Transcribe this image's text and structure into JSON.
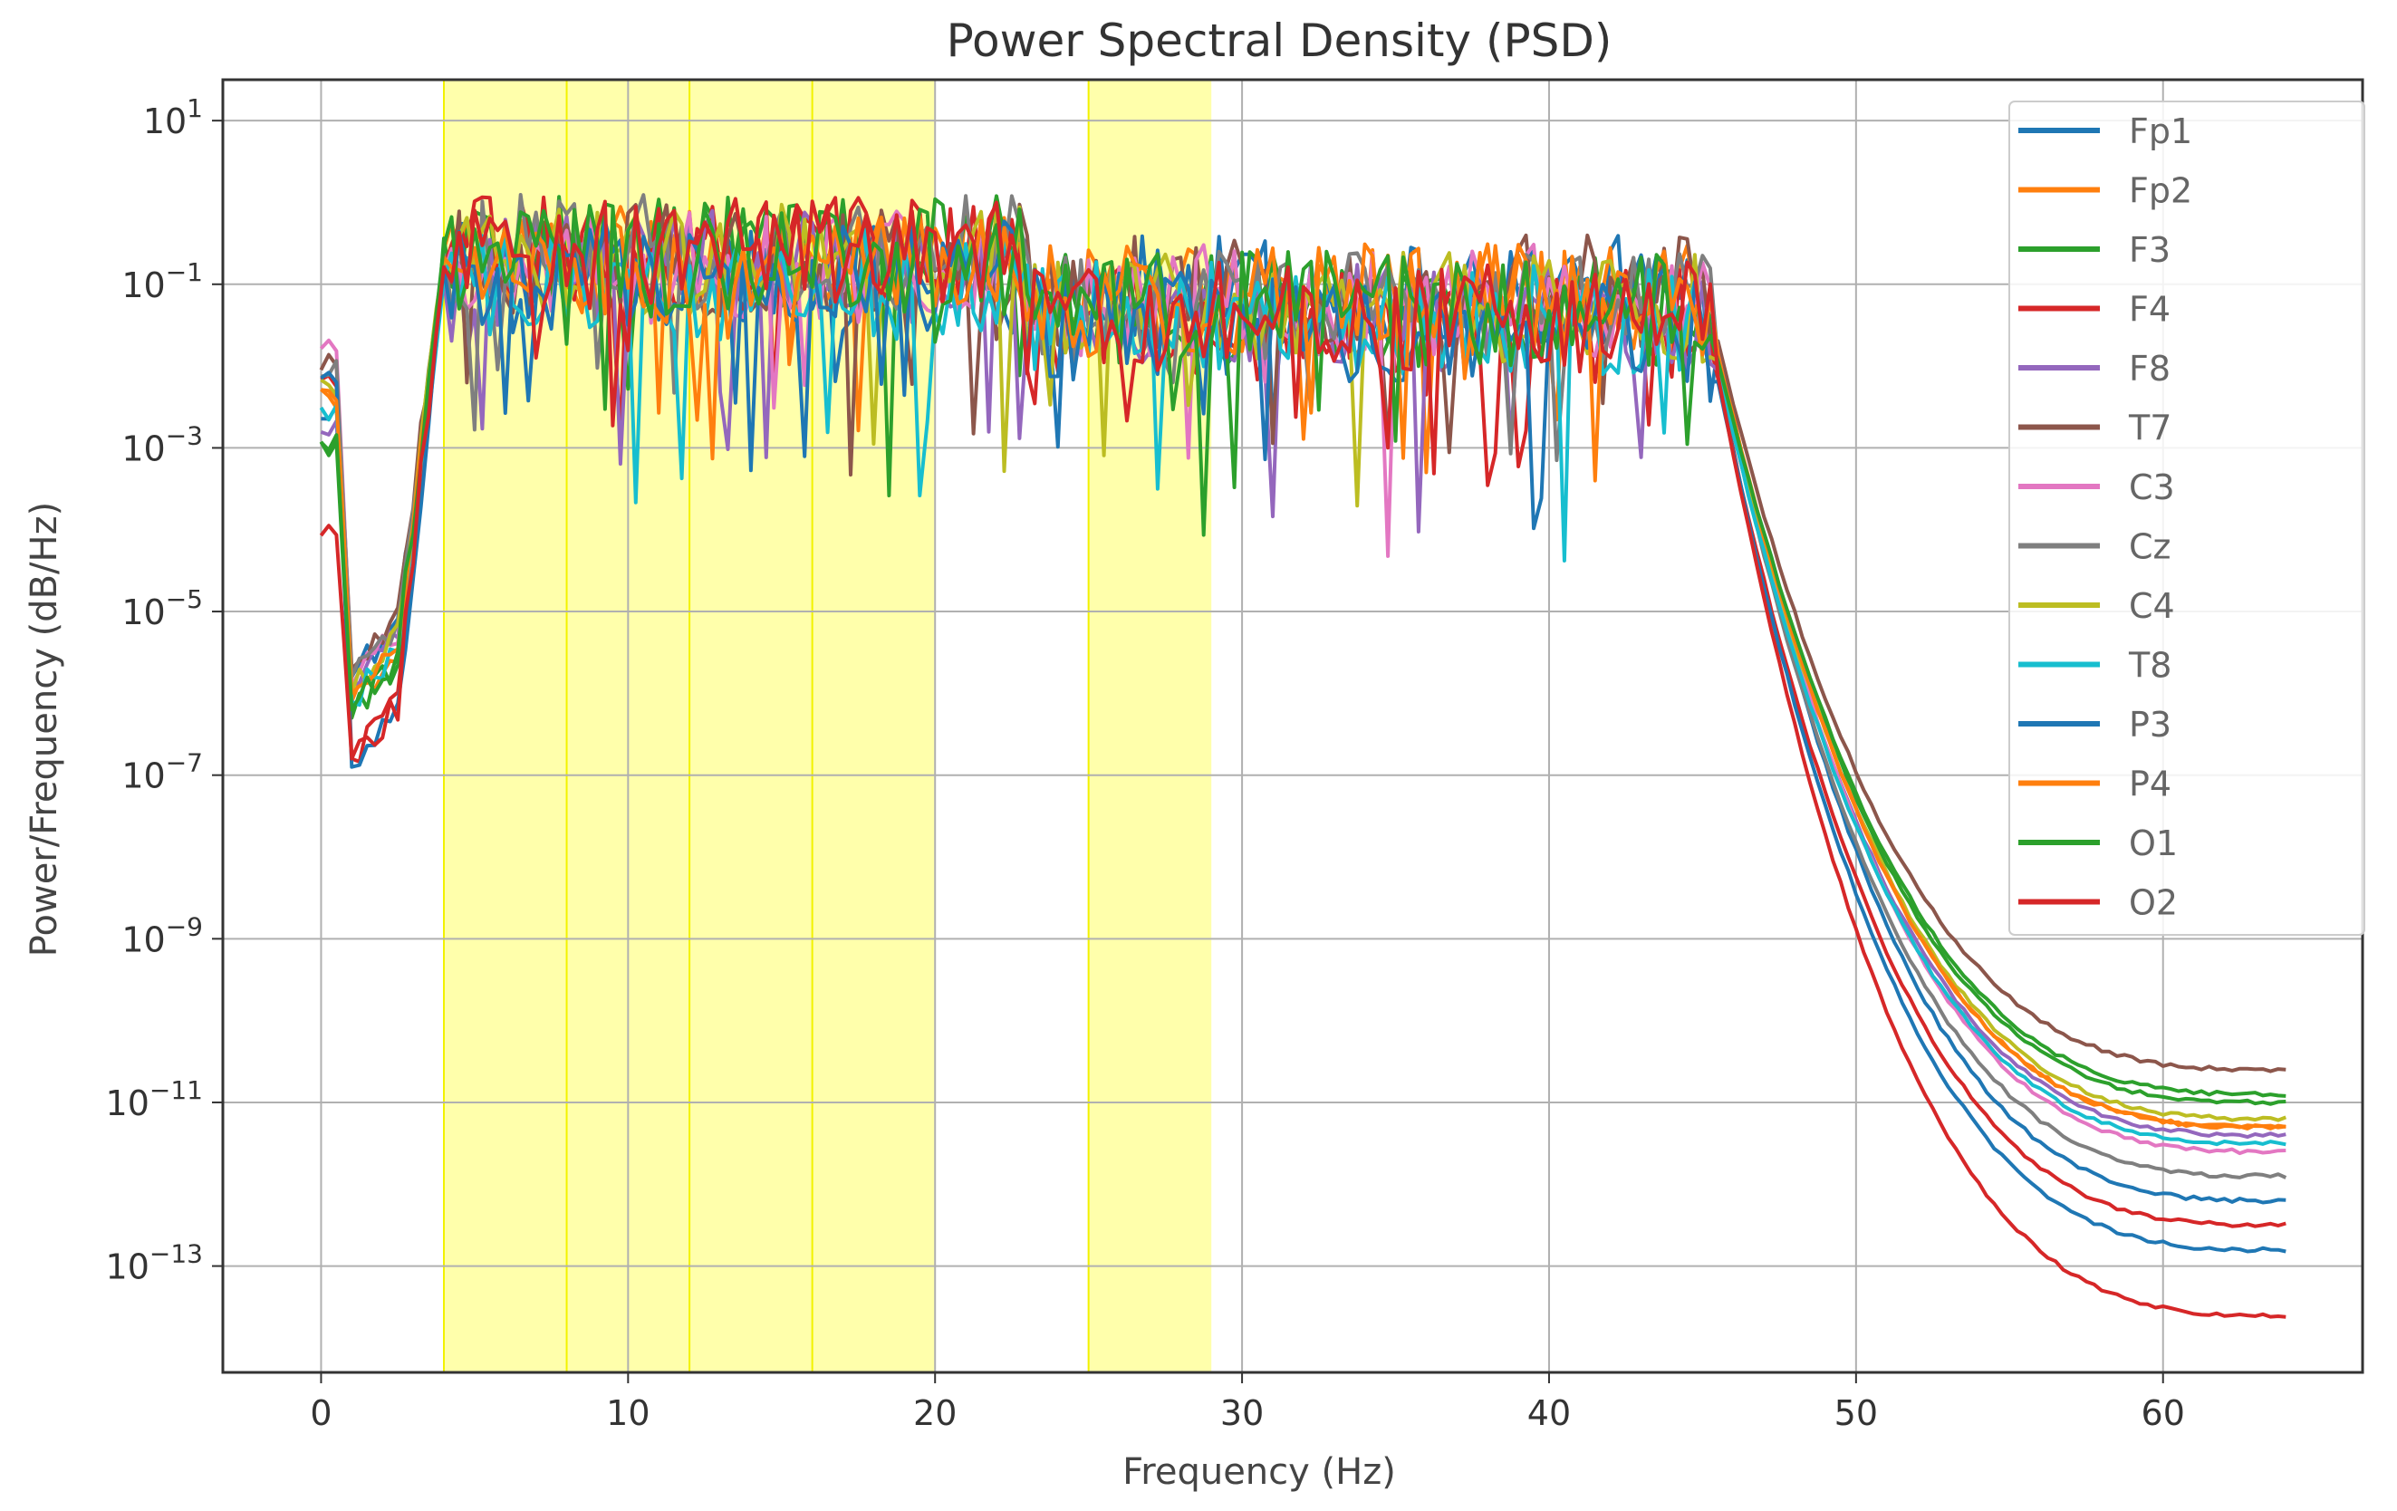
{
  "chart_data": {
    "type": "line",
    "title": "Power Spectral Density (PSD)",
    "xlabel": "Frequency (Hz)",
    "ylabel": "Power/Frequency (dB/Hz)",
    "y_scale": "log",
    "xlim": [
      -3.2,
      66.5
    ],
    "ylim_exp": [
      -14.3,
      1.5
    ],
    "x_ticks": [
      {
        "value": 0,
        "label": "0"
      },
      {
        "value": 10,
        "label": "10"
      },
      {
        "value": 20,
        "label": "20"
      },
      {
        "value": 30,
        "label": "30"
      },
      {
        "value": 40,
        "label": "40"
      },
      {
        "value": 50,
        "label": "50"
      },
      {
        "value": 60,
        "label": "60"
      }
    ],
    "y_ticks": [
      {
        "exp": 1,
        "base": "10",
        "sup": "1"
      },
      {
        "exp": -1,
        "base": "10",
        "sup": "−1"
      },
      {
        "exp": -3,
        "base": "10",
        "sup": "−3"
      },
      {
        "exp": -5,
        "base": "10",
        "sup": "−5"
      },
      {
        "exp": -7,
        "base": "10",
        "sup": "−7"
      },
      {
        "exp": -9,
        "base": "10",
        "sup": "−9"
      },
      {
        "exp": -11,
        "base": "10",
        "sup": "−11"
      },
      {
        "exp": -13,
        "base": "10",
        "sup": "−13"
      }
    ],
    "grid": true,
    "legend_position": "top-right",
    "highlight_bands": [
      {
        "start": 4,
        "end": 8
      },
      {
        "start": 8,
        "end": 12
      },
      {
        "start": 12,
        "end": 16
      },
      {
        "start": 16,
        "end": 20
      },
      {
        "start": 25,
        "end": 29
      }
    ],
    "highlight_color": "#ffff66",
    "series": [
      {
        "name": "Fp1",
        "color": "#1f77b4",
        "lowcut_exp": -2.5,
        "dip_exp": -5.8,
        "band_exp": -0.9,
        "lower_band_exp": -1.1,
        "tail_exp": -12.2
      },
      {
        "name": "Fp2",
        "color": "#ff7f0e",
        "lowcut_exp": -2.4,
        "dip_exp": -6.1,
        "band_exp": -0.7,
        "lower_band_exp": -1.2,
        "tail_exp": -11.3
      },
      {
        "name": "F3",
        "color": "#2ca02c",
        "lowcut_exp": -3.0,
        "dip_exp": -6.3,
        "band_exp": -0.6,
        "lower_band_exp": -1.3,
        "tail_exp": -11.0
      },
      {
        "name": "F4",
        "color": "#d62728",
        "lowcut_exp": -2.2,
        "dip_exp": -6.8,
        "band_exp": -0.6,
        "lower_band_exp": -1.5,
        "tail_exp": -12.5
      },
      {
        "name": "F8",
        "color": "#9467bd",
        "lowcut_exp": -2.8,
        "dip_exp": -5.9,
        "band_exp": -0.8,
        "lower_band_exp": -1.4,
        "tail_exp": -11.4
      },
      {
        "name": "T7",
        "color": "#8c564b",
        "lowcut_exp": -2.0,
        "dip_exp": -5.7,
        "band_exp": -0.7,
        "lower_band_exp": -1.1,
        "tail_exp": -10.6
      },
      {
        "name": "C3",
        "color": "#e377c2",
        "lowcut_exp": -1.7,
        "dip_exp": -5.9,
        "band_exp": -0.8,
        "lower_band_exp": -1.2,
        "tail_exp": -11.6
      },
      {
        "name": "Cz",
        "color": "#7f7f7f",
        "lowcut_exp": -2.0,
        "dip_exp": -5.8,
        "band_exp": -0.6,
        "lower_band_exp": -1.3,
        "tail_exp": -11.9
      },
      {
        "name": "C4",
        "color": "#bcbd22",
        "lowcut_exp": -2.3,
        "dip_exp": -6.0,
        "band_exp": -0.7,
        "lower_band_exp": -1.3,
        "tail_exp": -11.2
      },
      {
        "name": "T8",
        "color": "#17becf",
        "lowcut_exp": -2.6,
        "dip_exp": -6.1,
        "band_exp": -1.0,
        "lower_band_exp": -1.4,
        "tail_exp": -11.5
      },
      {
        "name": "P3",
        "color": "#1f77b4",
        "lowcut_exp": -2.2,
        "dip_exp": -6.9,
        "band_exp": -0.9,
        "lower_band_exp": -1.5,
        "tail_exp": -12.8
      },
      {
        "name": "P4",
        "color": "#ff7f0e",
        "lowcut_exp": -2.3,
        "dip_exp": -6.0,
        "band_exp": -0.8,
        "lower_band_exp": -1.2,
        "tail_exp": -11.3
      },
      {
        "name": "O1",
        "color": "#2ca02c",
        "lowcut_exp": -2.9,
        "dip_exp": -6.2,
        "band_exp": -0.7,
        "lower_band_exp": -1.3,
        "tail_exp": -10.9
      },
      {
        "name": "O2",
        "color": "#d62728",
        "lowcut_exp": -4.0,
        "dip_exp": -6.8,
        "band_exp": -0.6,
        "lower_band_exp": -1.4,
        "tail_exp": -13.6
      }
    ]
  }
}
